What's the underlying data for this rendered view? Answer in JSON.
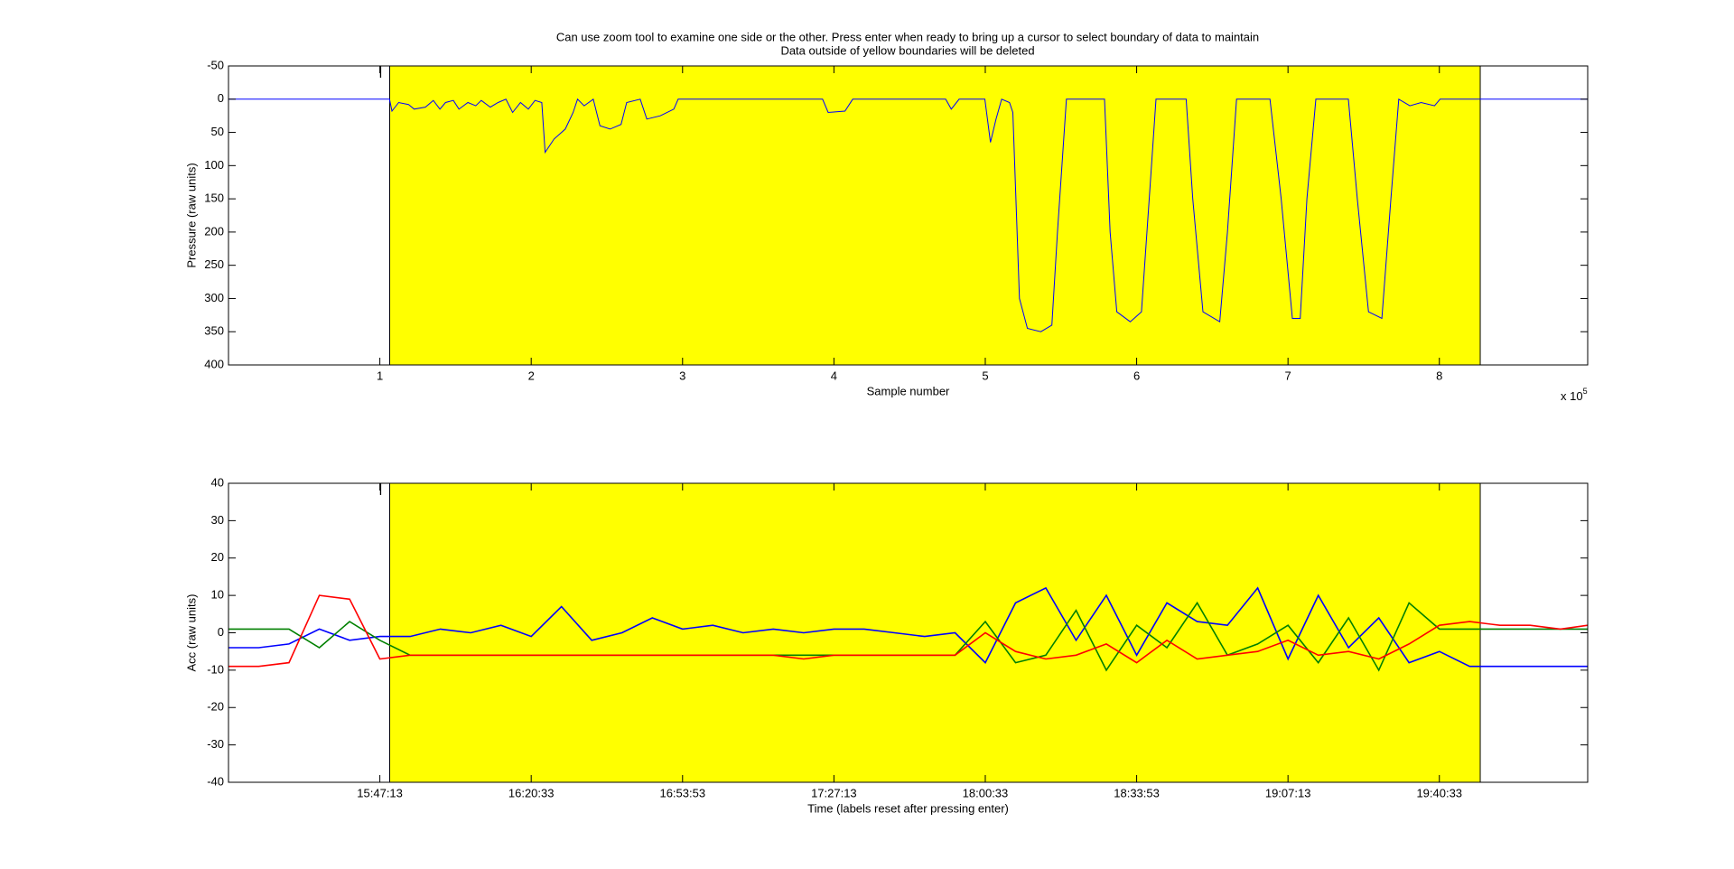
{
  "chart_data": [
    {
      "type": "line",
      "title": [
        "Can use zoom tool to examine one side or the other. Press enter when ready to bring up a cursor to select boundary of data to maintain",
        "Data outside of yellow boundaries will be deleted"
      ],
      "xlabel": "Sample number",
      "ylabel": "Pressure (raw units)",
      "x_multiplier": "x 10",
      "x_multiplier_exponent": "5",
      "xlim": [
        0,
        898000
      ],
      "ylim": [
        -50,
        400
      ],
      "y_reversed": true,
      "xticks": [
        {
          "value": 100000,
          "label": "1"
        },
        {
          "value": 200000,
          "label": "2"
        },
        {
          "value": 300000,
          "label": "3"
        },
        {
          "value": 400000,
          "label": "4"
        },
        {
          "value": 500000,
          "label": "5"
        },
        {
          "value": 600000,
          "label": "6"
        },
        {
          "value": 700000,
          "label": "7"
        },
        {
          "value": 800000,
          "label": "8"
        }
      ],
      "yticks": [
        -50,
        0,
        50,
        100,
        150,
        200,
        250,
        300,
        350,
        400
      ],
      "highlight": {
        "x": [
          106500,
          827000
        ],
        "color": "#ffff00"
      },
      "cursor_x": 100500,
      "x": [
        0,
        105000,
        106400,
        108000,
        112400,
        119000,
        122700,
        130100,
        135300,
        139700,
        143400,
        148600,
        152300,
        158200,
        163400,
        167000,
        173000,
        178100,
        183300,
        187700,
        192900,
        198100,
        202500,
        207000,
        209200,
        215100,
        222500,
        227700,
        230600,
        235000,
        241000,
        245400,
        252100,
        259400,
        263100,
        272000,
        276400,
        285300,
        294200,
        297100,
        392500,
        396200,
        407300,
        412400,
        473800,
        477500,
        482700,
        499700,
        503400,
        507100,
        510800,
        516000,
        518200,
        522600,
        527800,
        536700,
        544000,
        547700,
        553600,
        578800,
        582500,
        586900,
        595800,
        603200,
        608300,
        612800,
        632700,
        637100,
        643800,
        654900,
        660000,
        666000,
        688100,
        695500,
        702900,
        708100,
        712500,
        718400,
        739900,
        745800,
        753200,
        762000,
        768000,
        773200,
        780500,
        788000,
        796800,
        800500,
        898000
      ],
      "series": [
        {
          "color": "#0000ff",
          "values": [
            0,
            0,
            0,
            18,
            5,
            8,
            15,
            12,
            2,
            15,
            5,
            2,
            15,
            5,
            10,
            2,
            12,
            5,
            0,
            20,
            5,
            15,
            2,
            5,
            80,
            60,
            45,
            20,
            0,
            10,
            0,
            40,
            45,
            38,
            5,
            0,
            30,
            25,
            15,
            0,
            0,
            20,
            18,
            0,
            0,
            15,
            0,
            0,
            65,
            30,
            0,
            5,
            20,
            300,
            345,
            350,
            340,
            200,
            0,
            0,
            200,
            320,
            335,
            320,
            150,
            0,
            0,
            150,
            320,
            335,
            200,
            0,
            0,
            150,
            330,
            330,
            150,
            0,
            0,
            150,
            320,
            330,
            150,
            0,
            10,
            5,
            10,
            0,
            0
          ]
        }
      ]
    },
    {
      "type": "line",
      "xlabel": "Time (labels reset after pressing enter)",
      "ylabel": "Acc (raw units)",
      "xlim": [
        0,
        898000
      ],
      "ylim": [
        -40,
        40
      ],
      "xticks": [
        {
          "value": 100000,
          "label": "15:47:13"
        },
        {
          "value": 200000,
          "label": "16:20:33"
        },
        {
          "value": 300000,
          "label": "16:53:53"
        },
        {
          "value": 400000,
          "label": "17:27:13"
        },
        {
          "value": 500000,
          "label": "18:00:33"
        },
        {
          "value": 600000,
          "label": "18:33:53"
        },
        {
          "value": 700000,
          "label": "19:07:13"
        },
        {
          "value": 800000,
          "label": "19:40:33"
        }
      ],
      "yticks": [
        -40,
        -30,
        -20,
        -10,
        0,
        10,
        20,
        30,
        40
      ],
      "highlight": {
        "x": [
          106500,
          827000
        ],
        "color": "#ffff00"
      },
      "cursor_x": 100500,
      "x": [
        0,
        20000,
        40000,
        60000,
        80000,
        100000,
        120000,
        140000,
        160000,
        180000,
        200000,
        220000,
        240000,
        260000,
        280000,
        300000,
        320000,
        340000,
        360000,
        380000,
        400000,
        420000,
        440000,
        460000,
        480000,
        500000,
        520000,
        540000,
        560000,
        580000,
        600000,
        620000,
        640000,
        660000,
        680000,
        700000,
        720000,
        740000,
        760000,
        780000,
        800000,
        820000,
        840000,
        860000,
        880000,
        898000
      ],
      "series": [
        {
          "color": "#0000ff",
          "values": [
            -4,
            -4,
            -3,
            1,
            -2,
            -1,
            -1,
            1,
            0,
            2,
            -1,
            7,
            -2,
            0,
            4,
            1,
            2,
            0,
            1,
            0,
            1,
            1,
            0,
            -1,
            0,
            -8,
            8,
            12,
            -2,
            10,
            -6,
            8,
            3,
            2,
            12,
            -7,
            10,
            -4,
            4,
            -8,
            -5,
            -9,
            -9,
            -9,
            -9,
            -9
          ]
        },
        {
          "color": "#008000",
          "values": [
            1,
            1,
            1,
            -4,
            3,
            -2,
            -6,
            -6,
            -6,
            -6,
            -6,
            -6,
            -6,
            -6,
            -6,
            -6,
            -6,
            -6,
            -6,
            -6,
            -6,
            -6,
            -6,
            -6,
            -6,
            3,
            -8,
            -6,
            6,
            -10,
            2,
            -4,
            8,
            -6,
            -3,
            2,
            -8,
            4,
            -10,
            8,
            1,
            1,
            1,
            1,
            1,
            1
          ]
        },
        {
          "color": "#ff0000",
          "values": [
            -9,
            -9,
            -8,
            10,
            9,
            -7,
            -6,
            -6,
            -6,
            -6,
            -6,
            -6,
            -6,
            -6,
            -6,
            -6,
            -6,
            -6,
            -6,
            -7,
            -6,
            -6,
            -6,
            -6,
            -6,
            0,
            -5,
            -7,
            -6,
            -3,
            -8,
            -2,
            -7,
            -6,
            -5,
            -2,
            -6,
            -5,
            -7,
            -3,
            2,
            3,
            2,
            2,
            1,
            2
          ]
        }
      ]
    }
  ]
}
